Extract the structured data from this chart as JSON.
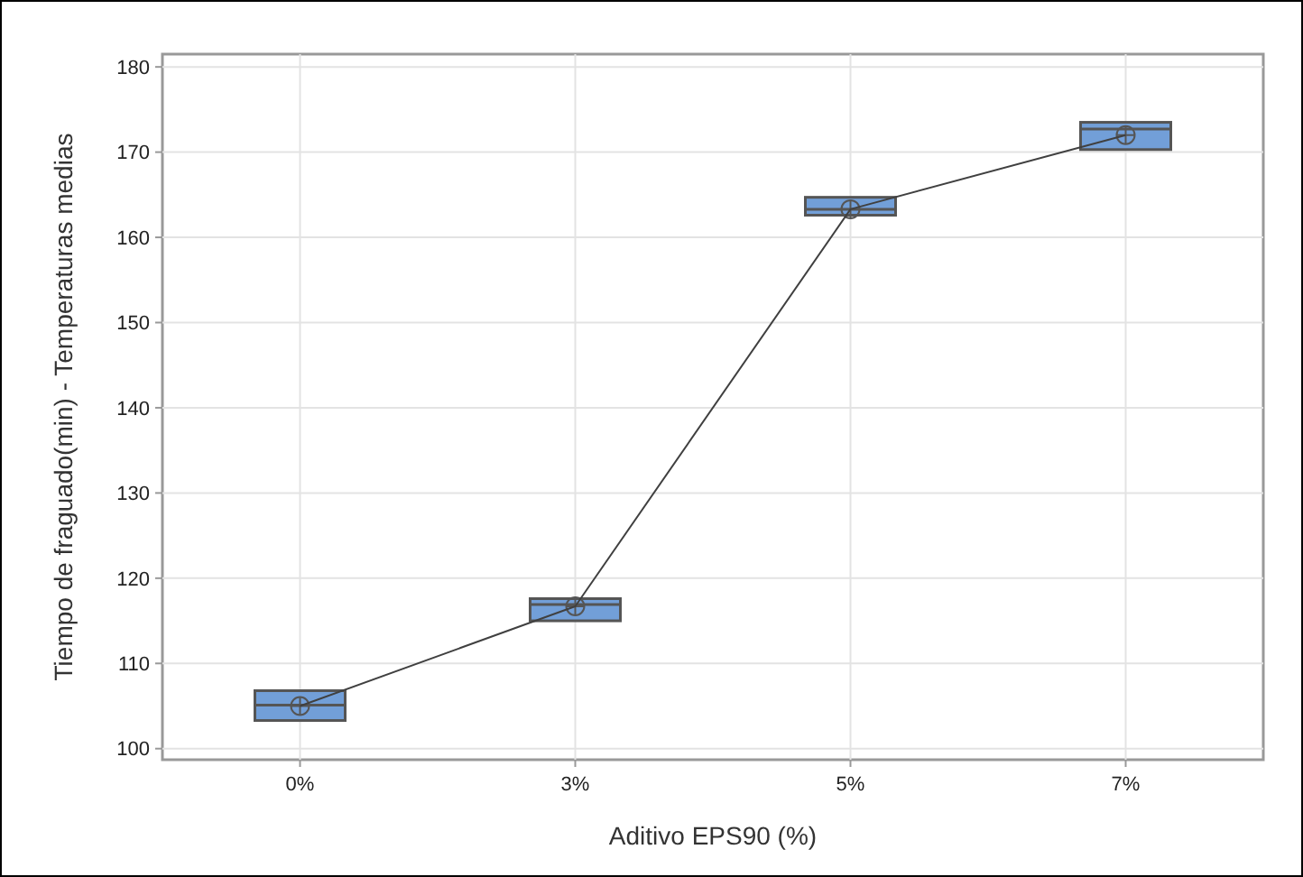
{
  "chart_data": {
    "type": "box",
    "xlabel": "Aditivo EPS90 (%)",
    "ylabel": "Tiempo de fraguado(min) - Temperaturas medias",
    "categories": [
      "0%",
      "3%",
      "5%",
      "7%"
    ],
    "ylim": [
      98.7,
      181.5
    ],
    "yticks": [
      100,
      110,
      120,
      130,
      140,
      150,
      160,
      170,
      180
    ],
    "grid": true,
    "series": [
      {
        "color": "#729fd8",
        "boxes": [
          {
            "low": 103.3,
            "q1": 103.3,
            "median": 105.1,
            "q3": 106.8,
            "high": 106.8,
            "mean": 105
          },
          {
            "low": 115.0,
            "q1": 115.0,
            "median": 116.9,
            "q3": 117.6,
            "high": 117.6,
            "mean": 116.7
          },
          {
            "low": 162.6,
            "q1": 162.6,
            "median": 163.3,
            "q3": 164.7,
            "high": 164.7,
            "mean": 163.3
          },
          {
            "low": 170.3,
            "q1": 170.3,
            "median": 172.7,
            "q3": 173.5,
            "high": 173.5,
            "mean": 172
          }
        ]
      },
      {
        "type": "line",
        "color": "#404040",
        "values": [
          105,
          116.7,
          163.3,
          172
        ],
        "marker": "none"
      }
    ]
  }
}
